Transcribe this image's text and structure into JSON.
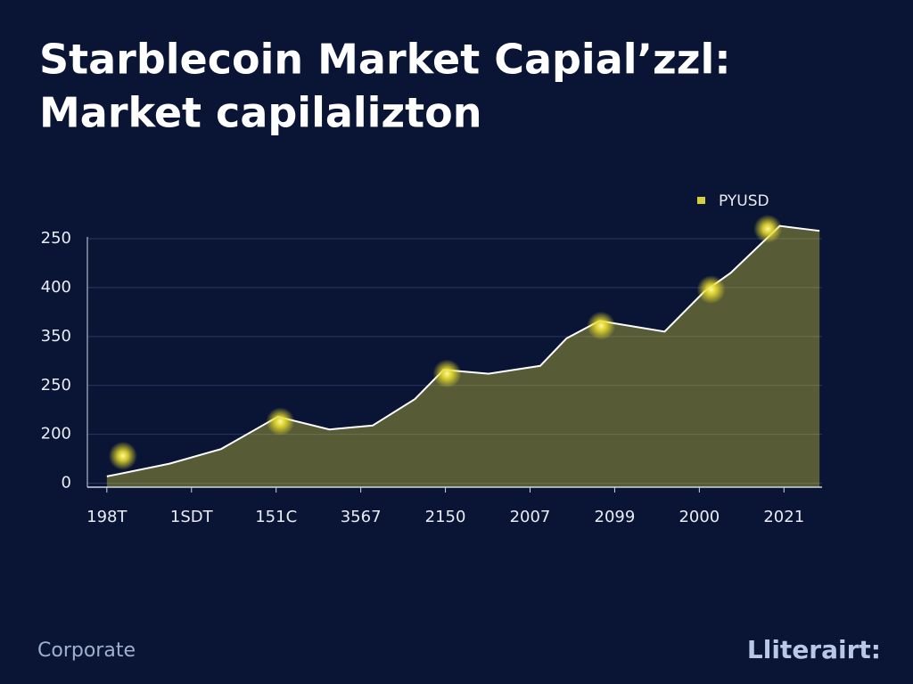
{
  "chart_data": {
    "type": "area",
    "title": "Starblecoin Market Capial’zzl:",
    "subtitle": "Market capilalizton",
    "x": [
      0,
      0.74,
      1.35,
      2.02,
      2.63,
      3.14,
      3.64,
      3.98,
      4.51,
      5.12,
      5.43,
      5.82,
      6.17,
      6.59,
      7.06,
      7.37,
      7.95,
      8.42
    ],
    "series": [
      {
        "name": "PYUSD",
        "color": "#d4cf3a",
        "values": [
          7,
          20,
          35,
          68,
          55,
          59,
          86,
          116,
          112,
          120,
          148,
          166,
          161,
          155,
          196,
          215,
          263,
          258
        ]
      }
    ],
    "markers": {
      "x": [
        0.19,
        2.05,
        4.02,
        5.84,
        7.14,
        7.81
      ],
      "y": [
        28,
        63,
        112,
        161,
        198,
        260
      ]
    },
    "xlim": [
      -0.23,
      8.45
    ],
    "xticks": [
      {
        "value": 0,
        "label": "198T"
      },
      {
        "value": 1,
        "label": "1SDT"
      },
      {
        "value": 2,
        "label": "151C"
      },
      {
        "value": 3,
        "label": "3567"
      },
      {
        "value": 4,
        "label": "2150"
      },
      {
        "value": 5,
        "label": "2007"
      },
      {
        "value": 6,
        "label": "2099"
      },
      {
        "value": 7,
        "label": "2000"
      },
      {
        "value": 8,
        "label": "2021"
      }
    ],
    "ylim": [
      -4,
      270
    ],
    "yticks": [
      0,
      {
        "value": 50,
        "label": "200"
      },
      {
        "value": 100,
        "label": "250"
      },
      {
        "value": 150,
        "label": "350"
      },
      {
        "value": 200,
        "label": "400"
      },
      250
    ],
    "grid": true,
    "legend": "upper right",
    "footer": "Corporate",
    "brand": "Lliterairt:"
  }
}
